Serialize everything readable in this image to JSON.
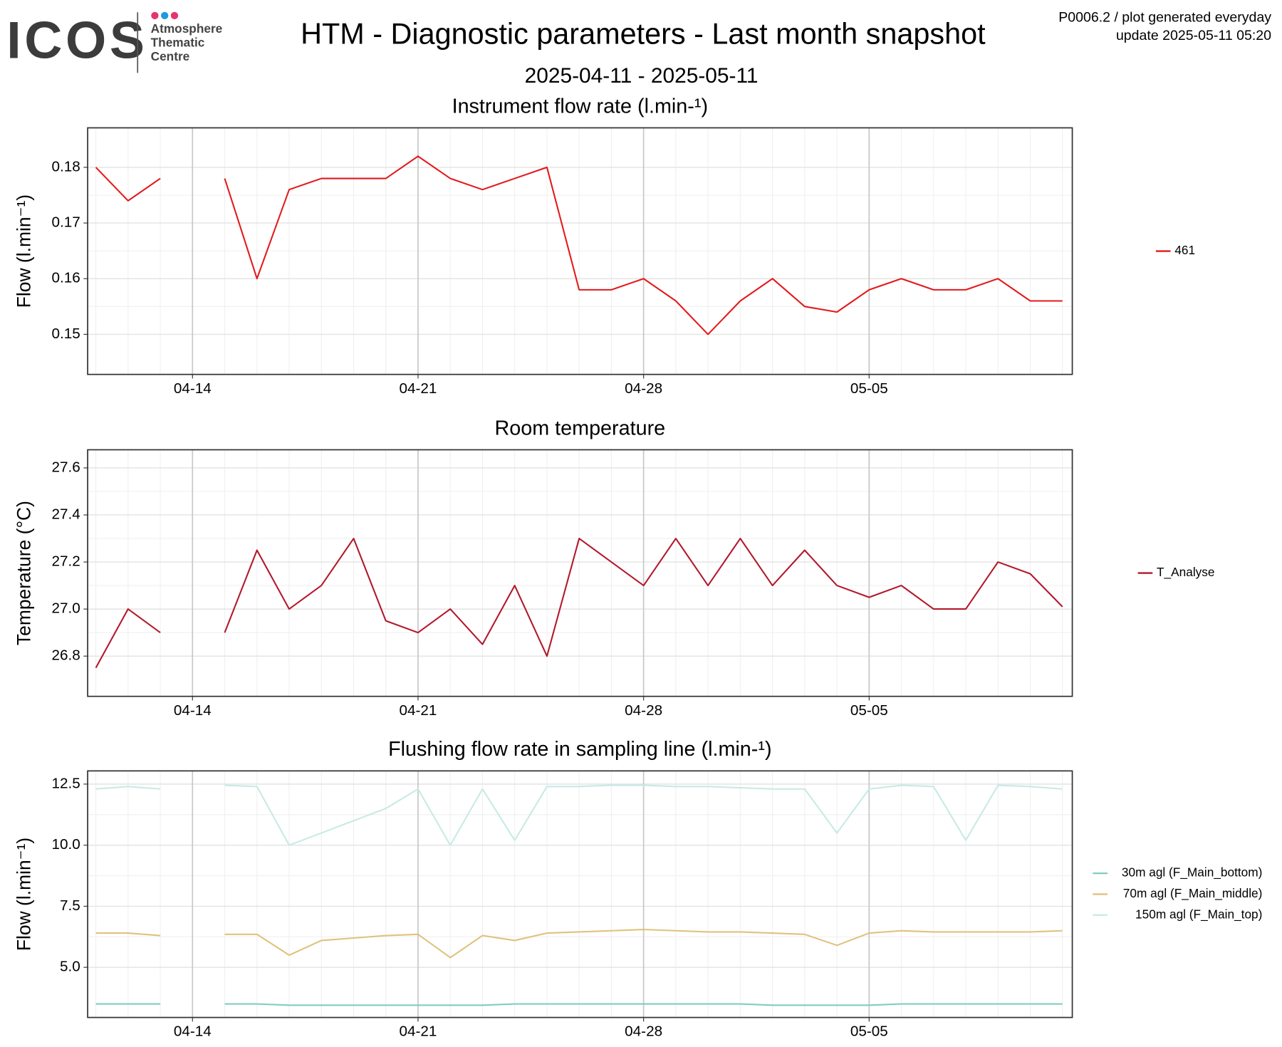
{
  "header": {
    "logo": "ICOS",
    "logo_lines": [
      "Atmosphere",
      "Thematic",
      "Centre"
    ],
    "title": "HTM - Diagnostic parameters - Last month snapshot",
    "subtitle": "2025-04-11 - 2025-05-11",
    "notes": [
      "P0006.2 / plot generated everyday",
      "update  2025-05-11 05:20"
    ]
  },
  "chart_data": [
    {
      "type": "line",
      "title": "Instrument flow rate (l.min-¹)",
      "y_label": "Flow (l.min⁻¹)",
      "x": [
        "04-11",
        "04-12",
        "04-13",
        "04-14",
        "04-15",
        "04-16",
        "04-17",
        "04-18",
        "04-19",
        "04-20",
        "04-21",
        "04-22",
        "04-23",
        "04-24",
        "04-25",
        "04-26",
        "04-27",
        "04-28",
        "04-29",
        "04-30",
        "05-01",
        "05-02",
        "05-03",
        "05-04",
        "05-05",
        "05-06",
        "05-07",
        "05-08",
        "05-09",
        "05-10",
        "05-11"
      ],
      "series": [
        {
          "name": "461",
          "color": "#e31a1c",
          "values": [
            0.18,
            0.174,
            0.178,
            null,
            0.178,
            0.16,
            0.176,
            0.178,
            0.178,
            0.178,
            0.182,
            0.178,
            0.176,
            0.178,
            0.18,
            0.158,
            0.158,
            0.16,
            0.156,
            0.15,
            0.156,
            0.16,
            0.155,
            0.154,
            0.158,
            0.16,
            0.158,
            0.158,
            0.16,
            0.156,
            0.156
          ]
        }
      ],
      "xlim": [
        "04-11",
        "05-11"
      ],
      "xticks": [
        "04-14",
        "04-21",
        "04-28",
        "05-05"
      ],
      "ylim": [
        0.1428,
        0.1871
      ],
      "yticks": [
        0.15,
        0.16,
        0.17,
        0.18
      ],
      "grid": true,
      "legend": "right"
    },
    {
      "type": "line",
      "title": "Room temperature",
      "y_label": "Temperature (°C)",
      "x": [
        "04-11",
        "04-12",
        "04-13",
        "04-14",
        "04-15",
        "04-16",
        "04-17",
        "04-18",
        "04-19",
        "04-20",
        "04-21",
        "04-22",
        "04-23",
        "04-24",
        "04-25",
        "04-26",
        "04-27",
        "04-28",
        "04-29",
        "04-30",
        "05-01",
        "05-02",
        "05-03",
        "05-04",
        "05-05",
        "05-06",
        "05-07",
        "05-08",
        "05-09",
        "05-10",
        "05-11"
      ],
      "series": [
        {
          "name": "T_Analyse",
          "color": "#b2182b",
          "values": [
            26.75,
            27.0,
            26.9,
            null,
            26.9,
            27.25,
            27.0,
            27.1,
            27.3,
            26.95,
            26.9,
            27.0,
            26.85,
            27.1,
            26.8,
            27.3,
            27.2,
            27.1,
            27.3,
            27.1,
            27.3,
            27.1,
            27.25,
            27.1,
            27.05,
            27.1,
            27.0,
            27.0,
            27.2,
            27.15,
            27.01
          ]
        }
      ],
      "xlim": [
        "04-11",
        "05-11"
      ],
      "xticks": [
        "04-14",
        "04-21",
        "04-28",
        "05-05"
      ],
      "ylim": [
        26.629,
        27.677
      ],
      "yticks": [
        26.8,
        {
          "value": 27,
          "label": "27.0"
        },
        27.2,
        27.4,
        27.6
      ],
      "grid": true,
      "legend": "right"
    },
    {
      "type": "line",
      "title": "Flushing flow rate in sampling line (l.min-¹)",
      "y_label": "Flow (l.min⁻¹)",
      "x": [
        "04-11",
        "04-12",
        "04-13",
        "04-14",
        "04-15",
        "04-16",
        "04-17",
        "04-18",
        "04-19",
        "04-20",
        "04-21",
        "04-22",
        "04-23",
        "04-24",
        "04-25",
        "04-26",
        "04-27",
        "04-28",
        "04-29",
        "04-30",
        "05-01",
        "05-02",
        "05-03",
        "05-04",
        "05-05",
        "05-06",
        "05-07",
        "05-08",
        "05-09",
        "05-10",
        "05-11"
      ],
      "series": [
        {
          "name": "30m agl (F_Main_bottom)",
          "color": "#80cdc1",
          "values": [
            3.5,
            3.5,
            3.5,
            null,
            3.5,
            3.5,
            3.45,
            3.45,
            3.45,
            3.45,
            3.45,
            3.45,
            3.45,
            3.5,
            3.5,
            3.5,
            3.5,
            3.5,
            3.5,
            3.5,
            3.5,
            3.45,
            3.45,
            3.45,
            3.45,
            3.5,
            3.5,
            3.5,
            3.5,
            3.5,
            3.5
          ]
        },
        {
          "name": "70m agl (F_Main_middle)",
          "color": "#dfc27d",
          "values": [
            6.4,
            6.4,
            6.3,
            null,
            6.35,
            6.35,
            5.5,
            6.1,
            6.2,
            6.3,
            6.35,
            5.4,
            6.3,
            6.1,
            6.4,
            6.45,
            6.5,
            6.55,
            6.5,
            6.45,
            6.45,
            6.4,
            6.35,
            5.9,
            6.4,
            6.5,
            6.45,
            6.45,
            6.45,
            6.45,
            6.5
          ]
        },
        {
          "name": "150m agl (F_Main_top)",
          "color": "#c7eae5",
          "values": [
            12.3,
            12.4,
            12.3,
            null,
            12.45,
            12.4,
            10.0,
            10.5,
            11.0,
            11.5,
            12.3,
            10.0,
            12.3,
            10.2,
            12.4,
            12.4,
            12.45,
            12.45,
            12.4,
            12.4,
            12.35,
            12.3,
            12.3,
            10.5,
            12.3,
            12.45,
            12.4,
            10.2,
            12.45,
            12.4,
            12.3
          ]
        }
      ],
      "xlim": [
        "04-11",
        "05-11"
      ],
      "xticks": [
        "04-14",
        "04-21",
        "04-28",
        "05-05"
      ],
      "ylim": [
        2.948,
        13.04
      ],
      "yticks": [
        {
          "value": 5,
          "label": "5.0"
        },
        7.5,
        {
          "value": 10,
          "label": "10.0"
        },
        12.5
      ],
      "grid": true,
      "legend": "right"
    }
  ]
}
